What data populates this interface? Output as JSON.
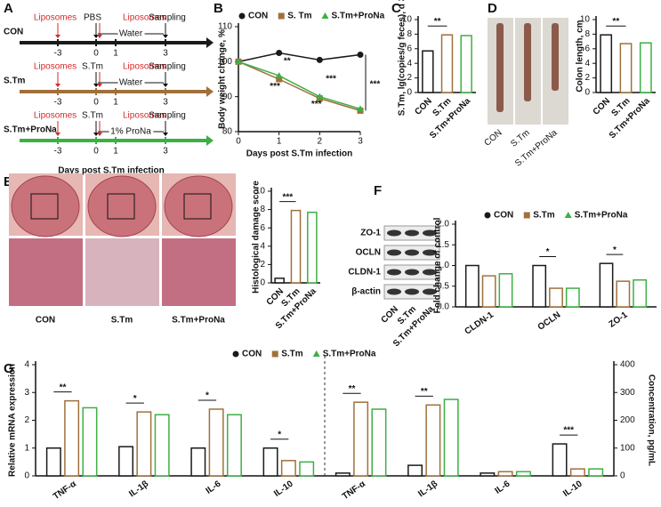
{
  "panels": [
    "A",
    "B",
    "C",
    "D",
    "E",
    "F",
    "G"
  ],
  "schematic": {
    "ticks": [
      "-3",
      "0",
      "1",
      "3"
    ],
    "xlabel": "Days post S.Tm infection",
    "rows": [
      {
        "label": "CON",
        "color": "#1a1a1a",
        "events": [
          "Liposomes",
          "PBS",
          "Liposomes",
          "Sampling"
        ],
        "drink": "Water"
      },
      {
        "label": "S.Tm",
        "color": "#a0703c",
        "events": [
          "Liposomes",
          "S.Tm",
          "Liposomes",
          "Sampling"
        ],
        "drink": "Water"
      },
      {
        "label": "S.Tm+ProNa",
        "color": "#3cb043",
        "events": [
          "Liposomes",
          "S.Tm",
          "Liposomes",
          "Sampling"
        ],
        "drink": "1% ProNa"
      }
    ]
  },
  "images": {
    "D": [
      "CON",
      "S.Tm",
      "S.Tm+ProNa"
    ],
    "E": [
      "CON",
      "S.Tm",
      "S.Tm+ProNa"
    ],
    "blot": {
      "proteins": [
        "ZO-1",
        "OCLN",
        "CLDN-1",
        "β-actin"
      ],
      "lanes": [
        "CON",
        "S.Tm",
        "S.Tm+ProNa"
      ]
    }
  },
  "chart_data": [
    {
      "type": "line",
      "x": [
        0,
        1,
        2,
        3
      ],
      "xlim": [
        0,
        3
      ],
      "xticks": [
        0,
        1,
        2,
        3
      ],
      "ylim": [
        80,
        110
      ],
      "yticks": [
        80,
        90,
        100,
        110
      ],
      "xlabel": "Days post S.Tm infection",
      "ylabel": "Body weight change, %",
      "series": [
        {
          "name": "CON",
          "color": "#1a1a1a",
          "values": [
            100,
            102.5,
            100.5,
            102
          ]
        },
        {
          "name": "S. Tm",
          "color": "#a0703c",
          "values": [
            100,
            95,
            89.5,
            86
          ]
        },
        {
          "name": "S.Tm+ProNa",
          "color": "#3cb043",
          "values": [
            100,
            96,
            90,
            86.5
          ]
        }
      ],
      "annotations": [
        "**",
        "***",
        "***",
        "***",
        "***"
      ]
    },
    {
      "type": "bar",
      "categories": [
        "CON",
        "S.Tm",
        "S.Tm+ProNa"
      ],
      "values": [
        5.7,
        7.9,
        7.8
      ],
      "colors": [
        "#1a1a1a",
        "#a0703c",
        "#3cb043"
      ],
      "ylim": [
        0,
        10
      ],
      "yticks": [
        0,
        2,
        4,
        6,
        8,
        10
      ],
      "ylabel": "S.Tm, lg(copies/g feces), d 3",
      "annotations": [
        "**"
      ]
    },
    {
      "type": "bar",
      "categories": [
        "CON",
        "S.Tm",
        "S.Tm+ProNa"
      ],
      "values": [
        7.9,
        6.7,
        6.8
      ],
      "colors": [
        "#1a1a1a",
        "#a0703c",
        "#3cb043"
      ],
      "ylim": [
        0,
        10
      ],
      "yticks": [
        0,
        2,
        4,
        6,
        8,
        10
      ],
      "ylabel": "Colon length, cm",
      "annotations": [
        "**"
      ]
    },
    {
      "type": "bar",
      "categories": [
        "CON",
        "S.Tm",
        "S.Tm+ProNa"
      ],
      "values": [
        0.5,
        7.9,
        7.7
      ],
      "colors": [
        "#1a1a1a",
        "#a0703c",
        "#3cb043"
      ],
      "ylim": [
        0,
        10
      ],
      "yticks": [
        0,
        2,
        4,
        6,
        8,
        10
      ],
      "ylabel": "Histological damage score",
      "annotations": [
        "***"
      ]
    },
    {
      "type": "grouped-bar",
      "categories": [
        "CLDN-1",
        "OCLN",
        "ZO-1"
      ],
      "series": [
        {
          "name": "CON",
          "color": "#1a1a1a",
          "values": [
            1.0,
            1.0,
            1.05
          ]
        },
        {
          "name": "S.Tm",
          "color": "#a0703c",
          "values": [
            0.75,
            0.45,
            0.62
          ]
        },
        {
          "name": "S.Tm+ProNa",
          "color": "#3cb043",
          "values": [
            0.8,
            0.45,
            0.65
          ]
        }
      ],
      "ylim": [
        0,
        2
      ],
      "yticks": [
        {
          "value": 0,
          "label": "0.0"
        },
        {
          "value": 0.5,
          "label": "0.5"
        },
        {
          "value": 1,
          "label": "1.0"
        },
        {
          "value": 1.5,
          "label": "1.5"
        },
        {
          "value": 2,
          "label": "2.0"
        }
      ],
      "ylabel": "Fold change of control",
      "annotations": [
        "*",
        "*"
      ]
    },
    {
      "type": "grouped-bar",
      "categories": [
        "TNF-α",
        "IL-1β",
        "IL-6",
        "IL-10",
        "TNF-α",
        "IL-1β",
        "IL-6",
        "IL-10"
      ],
      "series": [
        {
          "name": "CON",
          "color": "#1a1a1a",
          "values": [
            1.0,
            1.05,
            1.0,
            1.0,
            null,
            null,
            null,
            null
          ]
        },
        {
          "name": "S.Tm",
          "color": "#a0703c",
          "values": [
            2.7,
            2.3,
            2.4,
            0.55,
            null,
            null,
            null,
            null
          ]
        },
        {
          "name": "S.Tm+ProNa",
          "color": "#3cb043",
          "values": [
            2.45,
            2.2,
            2.2,
            0.5,
            null,
            null,
            null,
            null
          ]
        },
        {
          "color": "#1a1a1a",
          "axis": "y2",
          "values": [
            null,
            null,
            null,
            null,
            10,
            38,
            10,
            115
          ]
        },
        {
          "color": "#a0703c",
          "axis": "y2",
          "values": [
            null,
            null,
            null,
            null,
            265,
            255,
            15,
            25
          ]
        },
        {
          "color": "#3cb043",
          "axis": "y2",
          "values": [
            null,
            null,
            null,
            null,
            240,
            275,
            15,
            25
          ]
        }
      ],
      "ylim": [
        0,
        4
      ],
      "yticks": [
        0,
        1,
        2,
        3,
        4
      ],
      "y2lim": [
        0,
        400
      ],
      "y2ticks": [
        0,
        100,
        200,
        300,
        400
      ],
      "ylabel": "Relative mRNA expression",
      "y2label": "Concentration, pg/mL",
      "annotations": [
        "**",
        "*",
        "*",
        "*",
        "**",
        "**",
        "***"
      ]
    }
  ]
}
